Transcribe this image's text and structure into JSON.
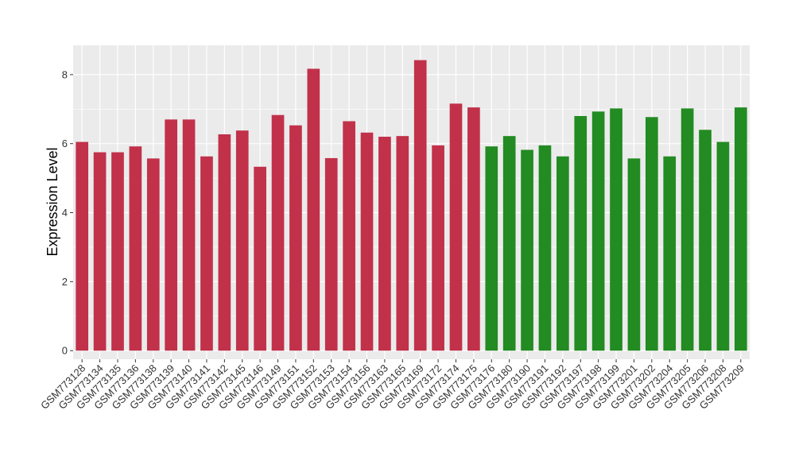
{
  "chart_data": {
    "type": "bar",
    "title": "",
    "xlabel": "",
    "ylabel": "Expression Level",
    "ylim": [
      -0.25,
      8.85
    ],
    "yticks": [
      0,
      2,
      4,
      6,
      8
    ],
    "grid": true,
    "legend": "none",
    "panel_background": "#ebebeb",
    "grid_color": "#ffffff",
    "categories": [
      "GSM773128",
      "GSM773134",
      "GSM773135",
      "GSM773136",
      "GSM773138",
      "GSM773139",
      "GSM773140",
      "GSM773141",
      "GSM773142",
      "GSM773145",
      "GSM773146",
      "GSM773149",
      "GSM773151",
      "GSM773152",
      "GSM773153",
      "GSM773154",
      "GSM773156",
      "GSM773163",
      "GSM773165",
      "GSM773169",
      "GSM773172",
      "GSM773174",
      "GSM773175",
      "GSM773176",
      "GSM773180",
      "GSM773190",
      "GSM773191",
      "GSM773192",
      "GSM773197",
      "GSM773198",
      "GSM773199",
      "GSM773201",
      "GSM773202",
      "GSM773204",
      "GSM773205",
      "GSM773206",
      "GSM773208",
      "GSM773209"
    ],
    "values": [
      6.05,
      5.75,
      5.75,
      5.92,
      5.57,
      6.7,
      6.7,
      5.63,
      6.27,
      6.38,
      5.33,
      6.83,
      6.53,
      8.17,
      5.58,
      6.65,
      6.32,
      6.2,
      6.22,
      8.42,
      5.95,
      7.16,
      7.05,
      5.92,
      6.22,
      5.82,
      5.95,
      5.63,
      6.8,
      6.93,
      7.02,
      5.57,
      6.77,
      5.63,
      7.02,
      6.4,
      6.05,
      7.05
    ],
    "colors": [
      "#c1314a",
      "#c1314a",
      "#c1314a",
      "#c1314a",
      "#c1314a",
      "#c1314a",
      "#c1314a",
      "#c1314a",
      "#c1314a",
      "#c1314a",
      "#c1314a",
      "#c1314a",
      "#c1314a",
      "#c1314a",
      "#c1314a",
      "#c1314a",
      "#c1314a",
      "#c1314a",
      "#c1314a",
      "#c1314a",
      "#c1314a",
      "#c1314a",
      "#c1314a",
      "#228b22",
      "#228b22",
      "#228b22",
      "#228b22",
      "#228b22",
      "#228b22",
      "#228b22",
      "#228b22",
      "#228b22",
      "#228b22",
      "#228b22",
      "#228b22",
      "#228b22",
      "#228b22",
      "#228b22"
    ]
  }
}
